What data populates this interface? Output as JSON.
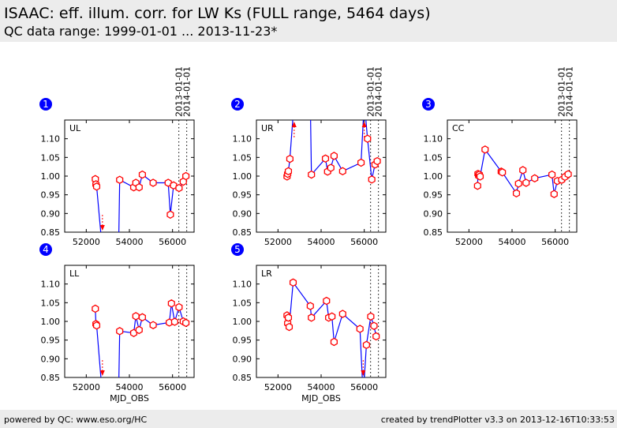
{
  "header": {
    "title": "ISAAC: eff. illum. corr. for LW Ks (FULL range, 5464 days)",
    "subtitle": "QC data range: 1999-01-01 ... 2013-11-23*"
  },
  "footer": {
    "left": "powered by QC: www.eso.org/HC",
    "right": "created by trendPlotter v3.3 on 2013-12-16T10:33:53"
  },
  "colors": {
    "line": "#0000ff",
    "marker": "#ff0000",
    "badge": "#0000ff",
    "header_bg": "#ececec"
  },
  "chart_data": [
    {
      "type": "line",
      "badge": "1",
      "label": "UL",
      "xlim": [
        51000,
        57000
      ],
      "ylim": [
        0.85,
        1.15
      ],
      "xticks": [
        52000,
        54000,
        56000
      ],
      "yticks": [
        0.85,
        0.9,
        0.95,
        1.0,
        1.05,
        1.1
      ],
      "xlabel": "",
      "grid": false,
      "vlines": [
        {
          "x": 56293,
          "label": "2013-01-01"
        },
        {
          "x": 56658,
          "label": "2014-01-01"
        }
      ],
      "x": [
        52420,
        52450,
        52480,
        52750,
        53500,
        53550,
        54200,
        54300,
        54450,
        54600,
        55100,
        55800,
        55900,
        56050,
        56300,
        56500,
        56620
      ],
      "y": [
        0.992,
        0.978,
        0.972,
        0.8,
        0.8,
        0.99,
        0.97,
        0.982,
        0.97,
        1.004,
        0.982,
        0.982,
        0.897,
        0.975,
        0.968,
        0.985,
        1.0
      ],
      "offscale": [
        {
          "x": 52750,
          "dir": "down"
        }
      ]
    },
    {
      "type": "line",
      "badge": "2",
      "label": "UR",
      "xlim": [
        51000,
        57000
      ],
      "ylim": [
        0.85,
        1.15
      ],
      "xticks": [
        52000,
        54000,
        56000
      ],
      "yticks": [
        0.85,
        0.9,
        0.95,
        1.0,
        1.05,
        1.1
      ],
      "xlabel": "",
      "grid": false,
      "vlines": [
        {
          "x": 56293,
          "label": "2013-01-01"
        },
        {
          "x": 56658,
          "label": "2014-01-01"
        }
      ],
      "x": [
        52420,
        52450,
        52480,
        52550,
        52750,
        53500,
        53550,
        54200,
        54300,
        54450,
        54600,
        55000,
        55850,
        56000,
        56150,
        56350,
        56500,
        56600
      ],
      "y": [
        0.999,
        1.006,
        1.013,
        1.046,
        1.2,
        1.2,
        1.004,
        1.047,
        1.012,
        1.022,
        1.054,
        1.013,
        1.036,
        1.2,
        1.1,
        0.991,
        1.031,
        1.04
      ],
      "offscale": [
        {
          "x": 52750,
          "dir": "up"
        },
        {
          "x": 56000,
          "dir": "up"
        }
      ]
    },
    {
      "type": "line",
      "badge": "3",
      "label": "CC",
      "xlim": [
        51000,
        57000
      ],
      "ylim": [
        0.85,
        1.15
      ],
      "xticks": [
        52000,
        54000,
        56000
      ],
      "yticks": [
        0.85,
        0.9,
        0.95,
        1.0,
        1.05,
        1.1
      ],
      "xlabel": "",
      "grid": false,
      "vlines": [
        {
          "x": 56293,
          "label": "2013-01-01"
        },
        {
          "x": 56658,
          "label": "2014-01-01"
        }
      ],
      "x": [
        52400,
        52420,
        52450,
        52480,
        52520,
        52750,
        53500,
        53550,
        54200,
        54300,
        54500,
        54650,
        55050,
        55850,
        55950,
        56100,
        56300,
        56450,
        56600
      ],
      "y": [
        0.974,
        1.006,
        1.001,
        1.004,
        0.999,
        1.071,
        1.012,
        1.01,
        0.954,
        0.98,
        1.016,
        0.982,
        0.994,
        1.004,
        0.952,
        0.987,
        0.99,
        0.998,
        1.005
      ],
      "offscale": []
    },
    {
      "type": "line",
      "badge": "4",
      "label": "LL",
      "xlim": [
        51000,
        57000
      ],
      "ylim": [
        0.85,
        1.15
      ],
      "xticks": [
        52000,
        54000,
        56000
      ],
      "yticks": [
        0.85,
        0.9,
        0.95,
        1.0,
        1.05,
        1.1
      ],
      "xlabel": "MJD_OBS",
      "grid": false,
      "vlines": [
        {
          "x": 56293,
          "label": ""
        },
        {
          "x": 56658,
          "label": ""
        }
      ],
      "x": [
        52420,
        52450,
        52480,
        52750,
        53500,
        53550,
        54200,
        54300,
        54450,
        54600,
        55100,
        55850,
        55950,
        56100,
        56300,
        56500,
        56620
      ],
      "y": [
        1.034,
        0.993,
        0.989,
        0.8,
        0.8,
        0.974,
        0.969,
        1.014,
        0.977,
        1.011,
        0.99,
        0.997,
        1.048,
        0.999,
        1.038,
        1.0,
        0.996
      ],
      "offscale": [
        {
          "x": 52750,
          "dir": "down"
        }
      ]
    },
    {
      "type": "line",
      "badge": "5",
      "label": "LR",
      "xlim": [
        51000,
        57000
      ],
      "ylim": [
        0.85,
        1.15
      ],
      "xticks": [
        52000,
        54000,
        56000
      ],
      "yticks": [
        0.85,
        0.9,
        0.95,
        1.0,
        1.05,
        1.1
      ],
      "xlabel": "MJD_OBS",
      "grid": false,
      "vlines": [
        {
          "x": 56293,
          "label": ""
        },
        {
          "x": 56658,
          "label": ""
        }
      ],
      "x": [
        52420,
        52450,
        52480,
        52520,
        52700,
        53500,
        53550,
        54250,
        54350,
        54500,
        54600,
        55000,
        55800,
        55950,
        56100,
        56300,
        56450,
        56550
      ],
      "y": [
        1.016,
        0.995,
        1.01,
        0.985,
        1.104,
        1.041,
        1.01,
        1.055,
        1.01,
        1.013,
        0.945,
        1.02,
        0.98,
        0.8,
        0.937,
        1.013,
        0.988,
        0.96
      ],
      "offscale": [
        {
          "x": 55950,
          "dir": "down"
        }
      ]
    }
  ]
}
